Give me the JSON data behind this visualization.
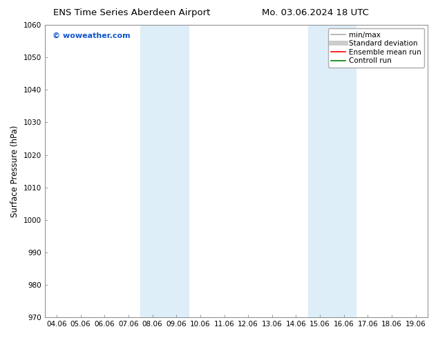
{
  "title_left": "ENS Time Series Aberdeen Airport",
  "title_right": "Mo. 03.06.2024 18 UTC",
  "ylabel": "Surface Pressure (hPa)",
  "ylim": [
    970,
    1060
  ],
  "yticks": [
    970,
    980,
    990,
    1000,
    1010,
    1020,
    1030,
    1040,
    1050,
    1060
  ],
  "xtick_labels": [
    "04.06",
    "05.06",
    "06.06",
    "07.06",
    "08.06",
    "09.06",
    "10.06",
    "11.06",
    "12.06",
    "13.06",
    "14.06",
    "15.06",
    "16.06",
    "17.06",
    "18.06",
    "19.06"
  ],
  "shaded_regions": [
    {
      "xstart": 4,
      "xend": 6,
      "color": "#ddeef8"
    },
    {
      "xstart": 11,
      "xend": 13,
      "color": "#ddeef8"
    }
  ],
  "watermark_text": "© woweather.com",
  "watermark_color": "#1155cc",
  "background_color": "#ffffff",
  "plot_bg_color": "#ffffff",
  "spine_color": "#aaaaaa",
  "legend_items": [
    {
      "label": "min/max",
      "color": "#aaaaaa",
      "lw": 1.2,
      "style": "solid"
    },
    {
      "label": "Standard deviation",
      "color": "#cccccc",
      "lw": 5,
      "style": "solid"
    },
    {
      "label": "Ensemble mean run",
      "color": "#ff0000",
      "lw": 1.2,
      "style": "solid"
    },
    {
      "label": "Controll run",
      "color": "#008000",
      "lw": 1.2,
      "style": "solid"
    }
  ],
  "title_fontsize": 9.5,
  "ylabel_fontsize": 8.5,
  "tick_fontsize": 7.5,
  "legend_fontsize": 7.5,
  "watermark_fontsize": 8
}
